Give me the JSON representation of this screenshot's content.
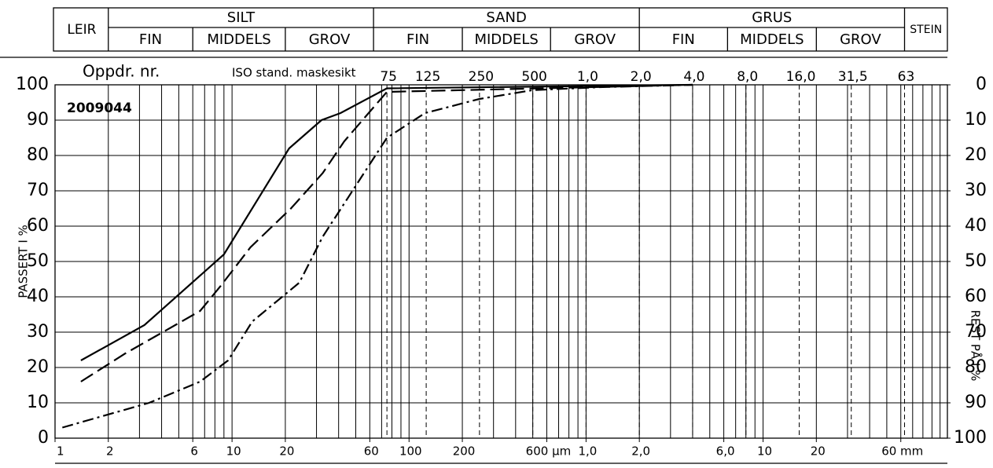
{
  "chart_data": {
    "type": "line",
    "job_label": "Oppdr. nr.",
    "sieve_label": "ISO stand. maskesikt",
    "sample": "2009044",
    "ylabel": "PASSERT I %",
    "y2label": "REST PÅ I %",
    "clay": "LEIR",
    "stone": "STEIN",
    "fractions": [
      {
        "name": "SILT",
        "parts": [
          "FIN",
          "MIDDELS",
          "GROV"
        ],
        "edges": [
          2,
          6,
          20,
          63
        ]
      },
      {
        "name": "SAND",
        "parts": [
          "FIN",
          "MIDDELS",
          "GROV"
        ],
        "edges": [
          63,
          200,
          630,
          2000
        ]
      },
      {
        "name": "GRUS",
        "parts": [
          "FIN",
          "MIDDELS",
          "GROV"
        ],
        "edges": [
          2000,
          6300,
          20000,
          63000
        ]
      }
    ],
    "log_x": true,
    "xlim": [
      1,
      110000
    ],
    "ylim": [
      0,
      100
    ],
    "y2lim": [
      100,
      0
    ],
    "yticks": [
      0,
      10,
      20,
      30,
      40,
      50,
      60,
      70,
      80,
      90,
      100
    ],
    "y2ticks": [
      0,
      10,
      20,
      30,
      40,
      50,
      60,
      70,
      80,
      90,
      100
    ],
    "xticks": [
      1,
      2,
      6,
      10,
      20,
      60,
      100,
      200,
      {
        "value": 600,
        "label": "600 µm"
      },
      {
        "value": 1000,
        "label": "1,0"
      },
      {
        "value": 2000,
        "label": "2,0"
      },
      {
        "value": 6000,
        "label": "6,0"
      },
      {
        "value": 10000,
        "label": "10"
      },
      {
        "value": 20000,
        "label": "20"
      },
      {
        "value": 60000,
        "label": "60 mm"
      }
    ],
    "sieves": [
      75,
      125,
      250,
      500,
      {
        "value": 1000,
        "label": "1,0"
      },
      {
        "value": 2000,
        "label": "2,0"
      },
      {
        "value": 4000,
        "label": "4,0"
      },
      {
        "value": 8000,
        "label": "8,0"
      },
      {
        "value": 16000,
        "label": "16,0"
      },
      {
        "value": 31500,
        "label": "31,5"
      },
      {
        "value": 63000,
        "label": "63"
      }
    ],
    "xgrid": [
      1,
      2,
      3,
      4,
      5,
      6,
      7,
      8,
      9,
      10,
      20,
      30,
      40,
      50,
      60,
      70,
      80,
      90,
      100,
      200,
      300,
      400,
      500,
      600,
      700,
      800,
      900,
      1000,
      2000,
      3000,
      4000,
      5000,
      6000,
      7000,
      8000,
      9000,
      10000,
      20000,
      30000,
      40000,
      50000,
      60000,
      70000,
      80000,
      90000,
      100000
    ],
    "grid": true,
    "series": [
      {
        "color": "#000000",
        "style": "solid",
        "x": [
          1.4,
          3.2,
          9,
          21,
          32,
          41,
          75,
          4000
        ],
        "values": [
          22,
          32,
          52,
          82,
          90,
          92,
          99,
          100
        ]
      },
      {
        "color": "#000000",
        "style": "dashed",
        "x": [
          1.4,
          2.5,
          6.6,
          8.6,
          12.7,
          21.5,
          32.5,
          43,
          75,
          4000
        ],
        "values": [
          16,
          24,
          36,
          43,
          54,
          65,
          75,
          84,
          98,
          100
        ]
      },
      {
        "color": "#000000",
        "style": "dashdot",
        "x": [
          1.1,
          3.4,
          6.6,
          9.5,
          13,
          24,
          32.5,
          75,
          123,
          250,
          500,
          1170,
          4000
        ],
        "values": [
          3,
          10,
          16,
          22,
          33,
          44,
          57,
          85,
          92,
          96,
          98.5,
          99.3,
          100
        ]
      }
    ]
  }
}
